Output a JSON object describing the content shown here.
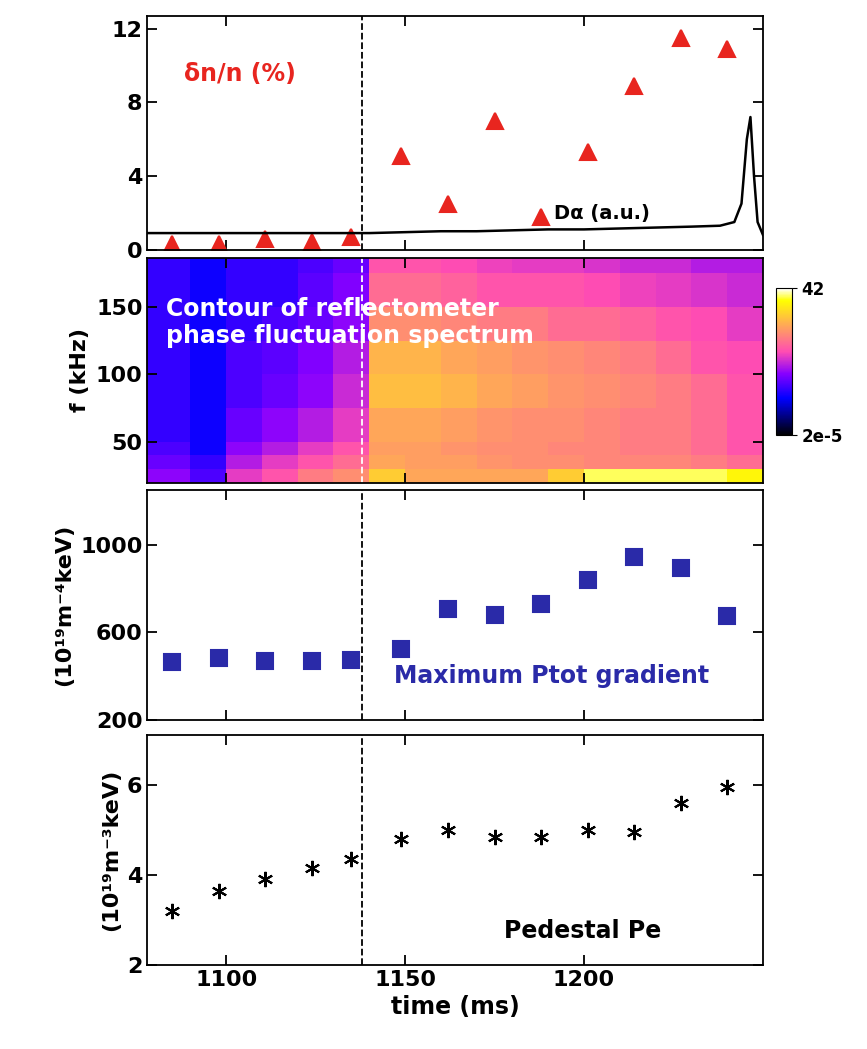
{
  "chart_data": [
    {
      "type": "scatter",
      "xlim": [
        1078,
        1250
      ],
      "xticks": [
        1100,
        1150,
        1200
      ],
      "ylim": [
        0,
        12.7
      ],
      "yticks": [
        0,
        4,
        8,
        12
      ],
      "tick_labels": "y",
      "dashed_line_x": 1138,
      "series": [
        {
          "name": "δn/n (%)",
          "type": "scatter",
          "marker": "triangle",
          "color": "#e8251f",
          "x": [
            1085,
            1098,
            1111,
            1124,
            1135,
            1149,
            1162,
            1175,
            1188,
            1201,
            1214,
            1227,
            1240
          ],
          "values": [
            0.3,
            0.3,
            0.6,
            0.4,
            0.7,
            5.1,
            2.5,
            7.0,
            1.8,
            5.3,
            8.9,
            11.5,
            10.9
          ]
        },
        {
          "name": "Dα (a.u.)",
          "type": "line",
          "line_style": "solid",
          "color": "#000000",
          "x": [
            1078,
            1090,
            1100,
            1110,
            1120,
            1130,
            1140,
            1150,
            1160,
            1170,
            1180,
            1190,
            1200,
            1210,
            1220,
            1230,
            1238,
            1242,
            1244,
            1245.5,
            1246.5,
            1247.5,
            1248.5,
            1250
          ],
          "values": [
            0.9,
            0.9,
            0.9,
            0.9,
            0.9,
            0.9,
            0.9,
            0.95,
            1.0,
            1.0,
            1.05,
            1.1,
            1.1,
            1.15,
            1.2,
            1.25,
            1.3,
            1.5,
            2.5,
            6.0,
            7.2,
            4.0,
            1.5,
            0.8
          ]
        }
      ]
    },
    {
      "type": "heatmap",
      "xlim": [
        1078,
        1250
      ],
      "xticks": [
        1100,
        1150,
        1200
      ],
      "ylim": [
        20,
        186
      ],
      "yticks": [
        50,
        100,
        150
      ],
      "y_label": "f (kHz)",
      "tick_labels": "y",
      "dashed_line_x": 1138,
      "annotation": "Contour of reflectometer\nphase fluctuation spectrum",
      "x_edges": [
        1078,
        1090,
        1100,
        1110,
        1120,
        1130,
        1140,
        1150,
        1160,
        1170,
        1180,
        1190,
        1200,
        1210,
        1220,
        1230,
        1240,
        1250
      ],
      "y_edges": [
        20,
        30,
        40,
        50,
        75,
        100,
        125,
        150,
        175,
        186
      ],
      "cells": [
        [
          0.01,
          0.003,
          0.05,
          0.1,
          0.3,
          0.5,
          3,
          1,
          1,
          1,
          1,
          3,
          20,
          20,
          20,
          20,
          10
        ],
        [
          0.005,
          0.002,
          0.02,
          0.05,
          0.1,
          0.2,
          1,
          0.8,
          0.8,
          0.6,
          0.5,
          0.5,
          0.4,
          0.4,
          0.4,
          0.3,
          0.2
        ],
        [
          0.003,
          0.001,
          0.01,
          0.02,
          0.05,
          0.1,
          0.8,
          0.8,
          0.6,
          0.5,
          0.5,
          0.4,
          0.4,
          0.3,
          0.3,
          0.2,
          0.1
        ],
        [
          0.002,
          0.001,
          0.005,
          0.01,
          0.02,
          0.05,
          1,
          1,
          0.8,
          0.6,
          0.5,
          0.5,
          0.4,
          0.3,
          0.3,
          0.2,
          0.1
        ],
        [
          0.002,
          0.001,
          0.003,
          0.005,
          0.01,
          0.03,
          2,
          2,
          1.5,
          1,
          0.8,
          0.6,
          0.5,
          0.4,
          0.3,
          0.2,
          0.1
        ],
        [
          0.002,
          0.001,
          0.003,
          0.004,
          0.008,
          0.02,
          1.5,
          1.5,
          1,
          0.8,
          0.6,
          0.5,
          0.4,
          0.3,
          0.2,
          0.1,
          0.08
        ],
        [
          0.002,
          0.001,
          0.002,
          0.003,
          0.005,
          0.01,
          0.5,
          0.5,
          0.4,
          0.3,
          0.3,
          0.2,
          0.2,
          0.15,
          0.1,
          0.08,
          0.05
        ],
        [
          0.002,
          0.001,
          0.002,
          0.002,
          0.004,
          0.008,
          0.2,
          0.2,
          0.15,
          0.1,
          0.1,
          0.1,
          0.08,
          0.06,
          0.05,
          0.04,
          0.03
        ],
        [
          0.002,
          0.001,
          0.002,
          0.002,
          0.003,
          0.005,
          0.1,
          0.1,
          0.08,
          0.06,
          0.05,
          0.05,
          0.04,
          0.03,
          0.03,
          0.02,
          0.02
        ]
      ],
      "colorbar_lim": [
        2e-05,
        42
      ],
      "colorbar_ticks": [
        42,
        {
          "value": 2e-05,
          "label": "2e-5"
        }
      ]
    },
    {
      "type": "scatter",
      "xlim": [
        1078,
        1250
      ],
      "xticks": [
        1100,
        1150,
        1200
      ],
      "ylim": [
        200,
        1250
      ],
      "yticks": [
        200,
        600,
        1000
      ],
      "y_label": "(10¹⁹m⁻⁴keV)",
      "tick_labels": "y",
      "dashed_line_x": 1138,
      "annotation": "Maximum Ptot gradient",
      "series": [
        {
          "name": "Maximum Ptot gradient",
          "type": "scatter",
          "marker": "square",
          "color": "#2a2aa8",
          "x": [
            1085,
            1098,
            1111,
            1124,
            1135,
            1149,
            1162,
            1175,
            1188,
            1201,
            1214,
            1227,
            1240
          ],
          "values": [
            465,
            480,
            468,
            467,
            472,
            525,
            705,
            680,
            730,
            840,
            945,
            895,
            675
          ]
        }
      ]
    },
    {
      "type": "scatter",
      "xlim": [
        1078,
        1250
      ],
      "xticks": [
        1100,
        1150,
        1200
      ],
      "ylim": [
        2,
        7.1
      ],
      "yticks": [
        2,
        4,
        6
      ],
      "x_label": "time (ms)",
      "y_label": "(10¹⁹m⁻³keV)",
      "dashed_line_x": 1138,
      "annotation": "Pedestal Pe",
      "series": [
        {
          "name": "Pedestal Pe",
          "type": "scatter",
          "marker": "asterisk",
          "color": "#000000",
          "x": [
            1085,
            1098,
            1111,
            1124,
            1135,
            1149,
            1162,
            1175,
            1188,
            1201,
            1214,
            1227,
            1240
          ],
          "values": [
            3.2,
            3.65,
            3.9,
            4.15,
            4.35,
            4.8,
            5.0,
            4.85,
            4.85,
            5.0,
            4.95,
            5.6,
            5.95
          ]
        }
      ]
    }
  ]
}
